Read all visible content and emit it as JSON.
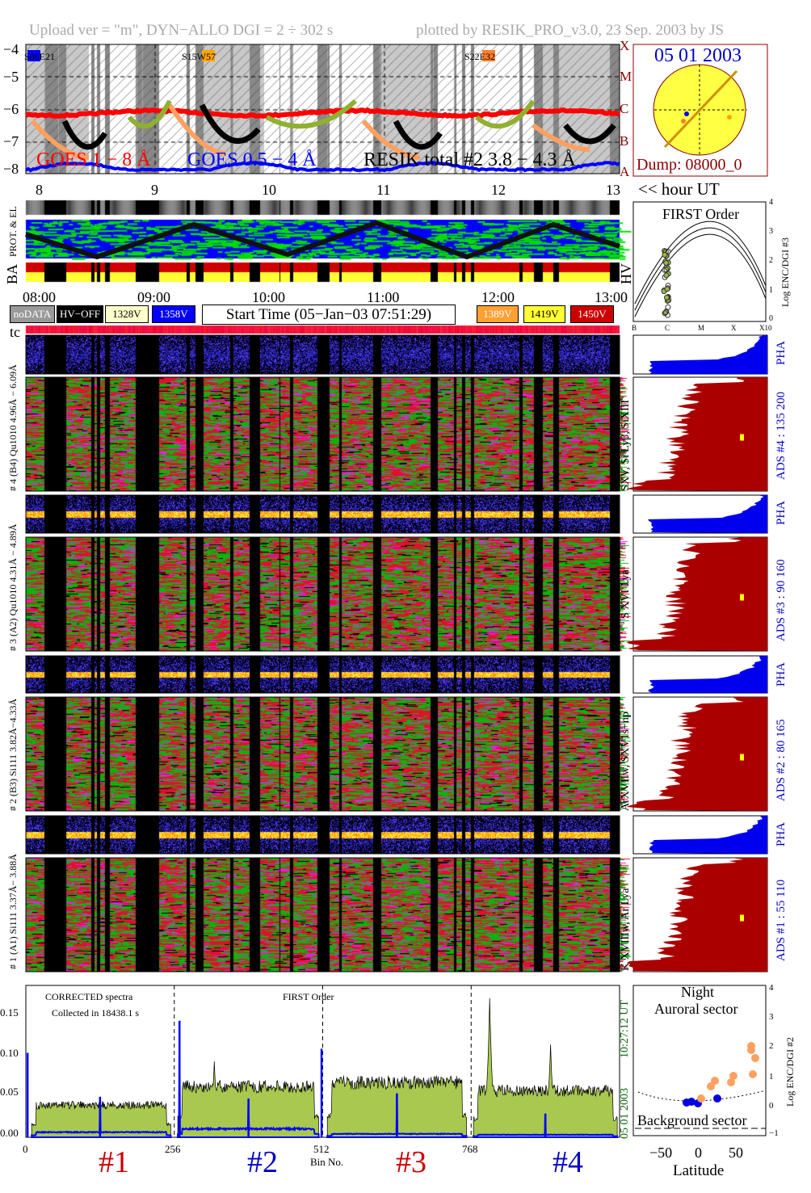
{
  "header": {
    "left": "Upload ver = \"m\", DYN−ALLO DGI =   2 ÷ 302 s",
    "right": "plotted by RESIK_PRO_v3.0, 23 Sep. 2003 by JS"
  },
  "goes": {
    "y_ticks": [
      "−4",
      "−5",
      "−6",
      "−7",
      "−8"
    ],
    "class_letters": [
      "X",
      "M",
      "C",
      "B",
      "A"
    ],
    "hour_ticks": [
      "8",
      "9",
      "10",
      "11",
      "12",
      "13"
    ],
    "hour_unit": "<< hour UT",
    "legend": [
      {
        "label": "GOES 1 − 8 Å",
        "color": "#ff0000"
      },
      {
        "label": "GOES 0.5 − 4 Å",
        "color": "#0000ff"
      },
      {
        "label": "RESIK total #2  3.8 − 4.3 Å",
        "color": "#000000"
      }
    ],
    "region_labels": [
      {
        "text": "S06E21",
        "color": "#0000ff"
      },
      {
        "text": "S15W57",
        "color": "#ffa500"
      },
      {
        "text": "S22E32",
        "color": "#ff7f27"
      }
    ]
  },
  "sun": {
    "date": "05 01 2003",
    "dump": "Dump: 08000_0"
  },
  "strips": {
    "prot_label": "PROT. & EL",
    "ba_label": "BA",
    "hv_label": "HV"
  },
  "time_ticks": [
    "08:00",
    "09:00",
    "10:00",
    "11:00",
    "12:00",
    "13:00"
  ],
  "legend_boxes": [
    {
      "label": "noDATA",
      "bg": "#999999",
      "fg": "#ffffff"
    },
    {
      "label": "HV−OFF",
      "bg": "#000000",
      "fg": "#ffffff"
    },
    {
      "label": "1328V",
      "bg": "#ffffcc",
      "fg": "#000000"
    },
    {
      "label": "1358V",
      "bg": "#0000ff",
      "fg": "#ffffff"
    },
    {
      "label": "1389V",
      "bg": "#ffa033",
      "fg": "#ffffff"
    },
    {
      "label": "1419V",
      "bg": "#ffff33",
      "fg": "#000000"
    },
    {
      "label": "1450V",
      "bg": "#cc0000",
      "fg": "#ffffff"
    }
  ],
  "start_time": "Start Time (05−Jan−03 07:51:29)",
  "tc_label": "tc",
  "first_order_panel": {
    "title": "FIRST Order",
    "y_ticks": [
      "0",
      "1",
      "2",
      "3",
      "4"
    ],
    "x_ticks": [
      "B",
      "C",
      "M",
      "X",
      "X10"
    ],
    "ylabel": "Log ENC/DGI #3"
  },
  "channels": [
    {
      "pha_label": "6.09Å",
      "left_label": "# 4 (B4) Qu1010 4.96Å − 6.09Å",
      "lines_label": "SXV, Si Lyβ, SiXIII",
      "ads_label": "ADS #4 :   135 200",
      "pha_tag": "PHA"
    },
    {
      "left_label": "# 3 (A2) Qu1010 4.31Å − 4.89Å",
      "lines_label": "S XVI Lya",
      "ads_label": "ADS #3 :   90 160",
      "pha_tag": "PHA"
    },
    {
      "left_label": "# 2 (B3) Si111 3.82Å−4.33Å",
      "lines_label": "ArXVIIw, SXV1s−np",
      "ads_label": "ADS #2 :   80 165",
      "pha_tag": "PHA"
    },
    {
      "left_label": "# 1 (A1) Si111 3.37Å− 3.88Å",
      "lines_label": "K XVIIIw, Ar Lya",
      "ads_label": "ADS #1 :   55 110",
      "pha_tag": "PHA"
    }
  ],
  "hv_on_intervals_hours": [
    [
      7.86,
      8.035
    ],
    [
      8.225,
      8.44
    ],
    [
      8.47,
      8.49
    ],
    [
      8.52,
      8.56
    ],
    [
      8.6,
      8.83
    ],
    [
      9.035,
      9.27
    ],
    [
      9.3,
      9.35
    ],
    [
      9.42,
      9.65
    ],
    [
      9.68,
      9.82
    ],
    [
      9.91,
      10.08
    ],
    [
      10.09,
      10.17
    ],
    [
      10.2,
      10.41
    ]
  ],
  "chart_data": {
    "type": "area",
    "title": "",
    "annotations": [
      "CORRECTED spectra",
      "Collected in 18438.1 s",
      "FIRST Order"
    ],
    "xlabel": "Bin No.",
    "x_ticks": [
      "0",
      "256",
      "512",
      "768"
    ],
    "xlim": [
      0,
      1024
    ],
    "y_ticks": [
      "0.00",
      "0.05",
      "0.10",
      "0.15"
    ],
    "ylim": [
      0,
      0.18
    ],
    "side_label_date": "05 01 2003",
    "side_label_time": "10:27:12 UT",
    "channel_labels": [
      {
        "text": "#1",
        "color": "#cc0000"
      },
      {
        "text": "#2",
        "color": "#0000cc"
      },
      {
        "text": "#3",
        "color": "#cc0000"
      },
      {
        "text": "#4",
        "color": "#0000cc"
      }
    ],
    "series": [
      {
        "color": "#a8c850",
        "segments": [
          {
            "bins": [
              10,
              250
            ],
            "level": 0.038
          },
          {
            "bins": [
              262,
              505
            ],
            "level": 0.06
          },
          {
            "bins": [
              520,
              760
            ],
            "level": 0.065
          },
          {
            "bins": [
              772,
              1020
            ],
            "level": 0.055
          }
        ],
        "peaks": [
          {
            "bin": 800,
            "value": 0.165
          },
          {
            "bin": 325,
            "value": 0.09
          },
          {
            "bin": 905,
            "value": 0.11
          }
        ]
      },
      {
        "color": "#0000ff",
        "segments": [
          {
            "bins": [
              10,
              250
            ],
            "level": 0.006
          },
          {
            "bins": [
              262,
              505
            ],
            "level": 0.01
          },
          {
            "bins": [
              520,
              760
            ],
            "level": 0.004
          },
          {
            "bins": [
              772,
              1020
            ],
            "level": 0.003
          }
        ],
        "peaks": [
          {
            "bin": 3,
            "value": 0.1
          },
          {
            "bin": 265,
            "value": 0.138
          },
          {
            "bin": 510,
            "value": 0.105
          },
          {
            "bin": 128,
            "value": 0.048
          },
          {
            "bin": 384,
            "value": 0.046
          },
          {
            "bin": 640,
            "value": 0.052
          },
          {
            "bin": 896,
            "value": 0.028
          }
        ]
      }
    ]
  },
  "latitude_panel": {
    "title1": "Night",
    "title2": "Auroral sector",
    "bottom_label": "Background sector",
    "x_ticks": [
      "−50",
      "0",
      "50"
    ],
    "xlabel": "Latitude",
    "y_ticks": [
      "−1",
      "0",
      "1",
      "2",
      "3",
      "4"
    ],
    "ylabel": "Log ENC/DGI #2"
  }
}
